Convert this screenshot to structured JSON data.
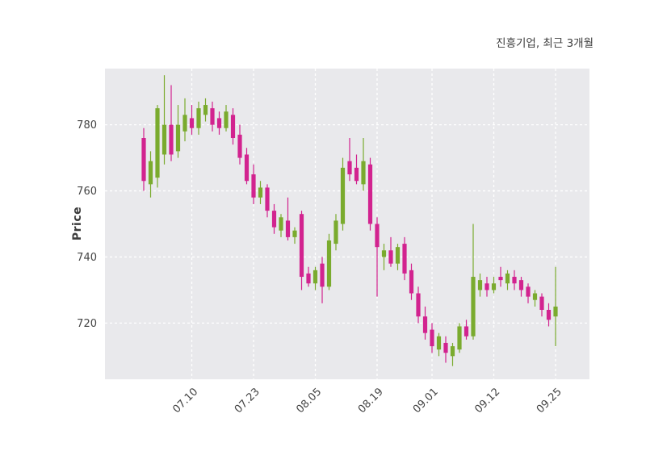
{
  "chart_data": {
    "type": "candlestick",
    "title": "진흥기업, 최근 3개월",
    "ylabel": "Price",
    "xlabel": "",
    "x_tick_labels": [
      "07.10",
      "07.23",
      "08.05",
      "08.19",
      "09.01",
      "09.12",
      "09.25"
    ],
    "x_tick_indices": [
      7,
      16,
      25,
      34,
      42,
      51,
      60
    ],
    "y_ticks": [
      720,
      740,
      760,
      780
    ],
    "ylim": [
      703,
      797
    ],
    "grid": "on",
    "legend": "none",
    "colors": {
      "up": "#7aab2e",
      "down": "#d2238f",
      "plot_bg": "#e9e9ec",
      "grid": "#ffffff",
      "text": "#444444"
    },
    "ohlc_format": [
      "open",
      "high",
      "low",
      "close"
    ],
    "ohlc": [
      [
        776,
        779,
        760,
        763
      ],
      [
        762,
        772,
        758,
        769
      ],
      [
        764,
        786,
        761,
        785
      ],
      [
        771,
        795,
        768,
        780
      ],
      [
        780,
        792,
        769,
        771
      ],
      [
        772,
        786,
        770,
        780
      ],
      [
        778,
        788,
        775,
        783
      ],
      [
        782,
        786,
        777,
        779
      ],
      [
        779,
        787,
        777,
        785
      ],
      [
        783,
        788,
        781,
        786
      ],
      [
        785,
        787,
        778,
        780
      ],
      [
        782,
        784,
        777,
        779
      ],
      [
        779,
        786,
        778,
        784
      ],
      [
        783,
        785,
        774,
        776
      ],
      [
        777,
        780,
        768,
        770
      ],
      [
        771,
        773,
        762,
        763
      ],
      [
        765,
        768,
        756,
        758
      ],
      [
        758,
        763,
        756,
        761
      ],
      [
        761,
        762,
        752,
        754
      ],
      [
        754,
        756,
        747,
        749
      ],
      [
        748,
        753,
        746,
        752
      ],
      [
        751,
        758,
        745,
        746
      ],
      [
        746,
        749,
        744,
        748
      ],
      [
        753,
        754,
        730,
        734
      ],
      [
        735,
        737,
        731,
        732
      ],
      [
        732,
        737,
        730,
        736
      ],
      [
        738,
        740,
        726,
        731
      ],
      [
        731,
        747,
        730,
        745
      ],
      [
        744,
        753,
        742,
        751
      ],
      [
        750,
        770,
        748,
        767
      ],
      [
        769,
        776,
        763,
        765
      ],
      [
        767,
        771,
        762,
        763
      ],
      [
        762,
        776,
        760,
        769
      ],
      [
        768,
        770,
        748,
        750
      ],
      [
        750,
        752,
        728,
        743
      ],
      [
        740,
        744,
        736,
        742
      ],
      [
        742,
        746,
        737,
        738
      ],
      [
        738,
        744,
        736,
        743
      ],
      [
        744,
        746,
        733,
        735
      ],
      [
        736,
        738,
        727,
        729
      ],
      [
        729,
        731,
        720,
        722
      ],
      [
        722,
        725,
        715,
        717
      ],
      [
        718,
        720,
        711,
        713
      ],
      [
        712,
        717,
        710,
        716
      ],
      [
        714,
        716,
        708,
        711
      ],
      [
        710,
        714,
        707,
        713
      ],
      [
        712,
        720,
        711,
        719
      ],
      [
        719,
        721,
        715,
        716
      ],
      [
        716,
        750,
        715,
        734
      ],
      [
        730,
        735,
        728,
        733
      ],
      [
        732,
        734,
        728,
        730
      ],
      [
        730,
        734,
        729,
        732
      ],
      [
        734,
        737,
        731,
        733
      ],
      [
        732,
        736,
        730,
        735
      ],
      [
        734,
        736,
        730,
        732
      ],
      [
        733,
        734,
        728,
        730
      ],
      [
        731,
        732,
        726,
        728
      ],
      [
        727,
        730,
        725,
        729
      ],
      [
        728,
        729,
        722,
        724
      ],
      [
        724,
        726,
        719,
        721
      ],
      [
        722,
        737,
        713,
        725
      ]
    ]
  }
}
